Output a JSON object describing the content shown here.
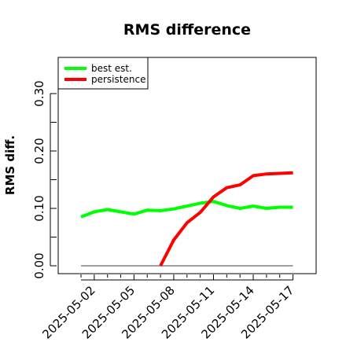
{
  "chart_data": {
    "type": "line",
    "title": "RMS difference",
    "xlabel": "",
    "ylabel": "RMS diff.",
    "x": [
      "2025-05-01",
      "2025-05-02",
      "2025-05-03",
      "2025-05-04",
      "2025-05-05",
      "2025-05-06",
      "2025-05-07",
      "2025-05-08",
      "2025-05-09",
      "2025-05-10",
      "2025-05-11",
      "2025-05-12",
      "2025-05-13",
      "2025-05-14",
      "2025-05-15",
      "2025-05-16",
      "2025-05-17"
    ],
    "x_tick_labels": [
      "2025-05-02",
      "2025-05-05",
      "2025-05-08",
      "2025-05-11",
      "2025-05-14",
      "2025-05-17"
    ],
    "y_ticks": [
      "0.00",
      "0.10",
      "0.20",
      "0.30"
    ],
    "ylim": [
      -0.01,
      0.36
    ],
    "reference_line": {
      "value": 0.0,
      "color": "#808080"
    },
    "series": [
      {
        "name": "best est.",
        "color": "#00ff00",
        "values": [
          0.085,
          0.094,
          0.098,
          0.094,
          0.09,
          0.097,
          0.096,
          0.099,
          0.104,
          0.109,
          0.112,
          0.105,
          0.1,
          0.104,
          0.1,
          0.102,
          0.102
        ]
      },
      {
        "name": "persistence",
        "color": "#ff0000",
        "values": [
          null,
          null,
          null,
          null,
          null,
          null,
          0.0,
          0.045,
          0.075,
          0.093,
          0.12,
          0.136,
          0.141,
          0.157,
          0.16,
          0.161,
          0.162
        ]
      }
    ],
    "grid": false,
    "legend_position": "top-left"
  }
}
